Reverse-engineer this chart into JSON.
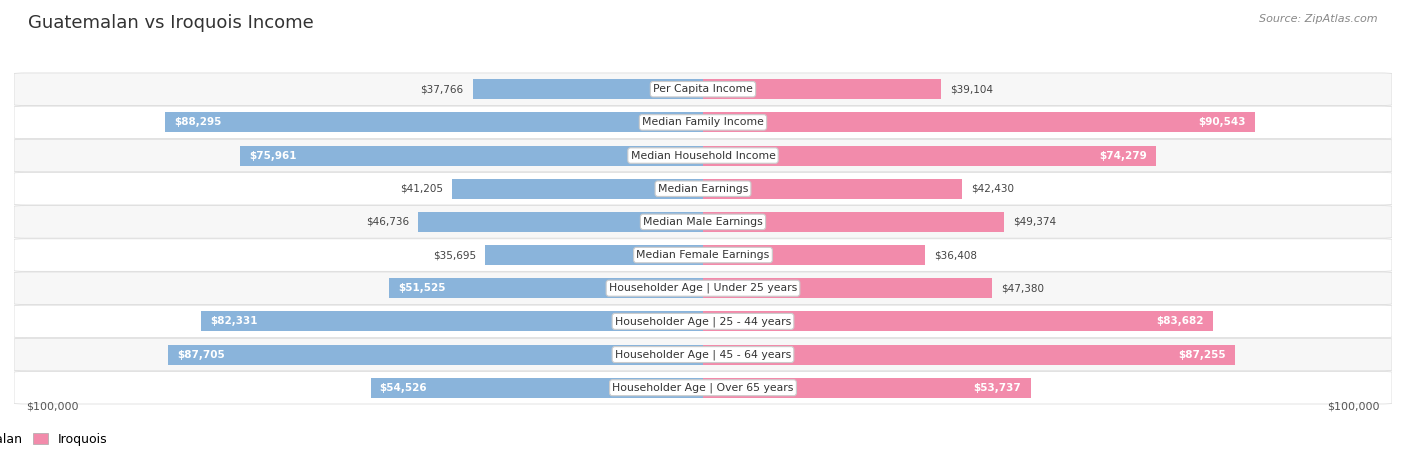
{
  "title": "Guatemalan vs Iroquois Income",
  "source": "Source: ZipAtlas.com",
  "categories": [
    "Per Capita Income",
    "Median Family Income",
    "Median Household Income",
    "Median Earnings",
    "Median Male Earnings",
    "Median Female Earnings",
    "Householder Age | Under 25 years",
    "Householder Age | 25 - 44 years",
    "Householder Age | 45 - 64 years",
    "Householder Age | Over 65 years"
  ],
  "guatemalan_values": [
    37766,
    88295,
    75961,
    41205,
    46736,
    35695,
    51525,
    82331,
    87705,
    54526
  ],
  "iroquois_values": [
    39104,
    90543,
    74279,
    42430,
    49374,
    36408,
    47380,
    83682,
    87255,
    53737
  ],
  "guatemalan_labels": [
    "$37,766",
    "$88,295",
    "$75,961",
    "$41,205",
    "$46,736",
    "$35,695",
    "$51,525",
    "$82,331",
    "$87,705",
    "$54,526"
  ],
  "iroquois_labels": [
    "$39,104",
    "$90,543",
    "$74,279",
    "$42,430",
    "$49,374",
    "$36,408",
    "$47,380",
    "$83,682",
    "$87,255",
    "$53,737"
  ],
  "guatemalan_color": "#8ab4db",
  "iroquois_color": "#f28bab",
  "max_value": 100000,
  "xlabel_left": "$100,000",
  "xlabel_right": "$100,000",
  "legend_guatemalan": "Guatemalan",
  "legend_iroquois": "Iroquois",
  "bg_color": "#ffffff",
  "row_bg_even": "#f7f7f7",
  "row_bg_odd": "#ffffff",
  "title_fontsize": 13,
  "bar_height": 0.6,
  "inside_label_threshold": 0.5
}
